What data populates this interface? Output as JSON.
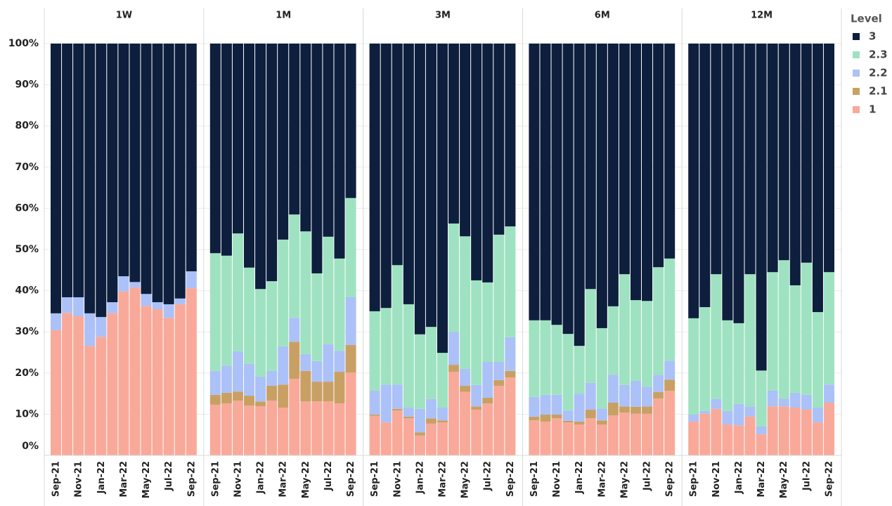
{
  "chart_data": {
    "type": "bar",
    "stacked": true,
    "legend_title": "Level",
    "legend": "right",
    "grid": true,
    "facets": [
      "1W",
      "1M",
      "3M",
      "6M",
      "12M"
    ],
    "categories": [
      "Sep-21",
      null,
      "Nov-21",
      null,
      "Jan-22",
      null,
      "Mar-22",
      null,
      "May-22",
      null,
      "Jul-22",
      null,
      "Sep-22"
    ],
    "ylim": [
      0,
      100
    ],
    "yticks": [
      {
        "value": 0,
        "label": "0%"
      },
      {
        "value": 10,
        "label": "10%"
      },
      {
        "value": 20,
        "label": "20%"
      },
      {
        "value": 30,
        "label": "30%"
      },
      {
        "value": 40,
        "label": "40%"
      },
      {
        "value": 50,
        "label": "50%"
      },
      {
        "value": 60,
        "label": "60%"
      },
      {
        "value": 70,
        "label": "70%"
      },
      {
        "value": 80,
        "label": "80%"
      },
      {
        "value": 90,
        "label": "90%"
      },
      {
        "value": 100,
        "label": "100%"
      }
    ],
    "series": [
      {
        "name": "3",
        "color": "#0d1f3d",
        "values": [
          [
            65.5,
            61.6,
            61.6,
            65.5,
            66.4,
            62.8,
            56.5,
            57.9,
            60.8,
            62.8,
            63.3,
            61.9,
            55.3
          ],
          [
            50.9,
            51.5,
            46.1,
            54.4,
            59.6,
            57.7,
            47.6,
            41.5,
            45.6,
            55.8,
            46.9,
            52.2,
            37.5
          ],
          [
            65.0,
            64.2,
            53.8,
            63.3,
            70.6,
            68.8,
            75.1,
            43.7,
            46.8,
            57.5,
            58.0,
            46.4,
            44.4
          ],
          [
            67.2,
            67.2,
            68.3,
            70.5,
            73.4,
            59.6,
            69.1,
            63.8,
            56.0,
            62.3,
            62.5,
            54.3,
            52.2
          ],
          [
            66.7,
            64.0,
            56.0,
            67.2,
            67.9,
            56.0,
            79.4,
            55.5,
            52.6,
            58.7,
            53.2,
            65.2,
            55.5
          ]
        ]
      },
      {
        "name": "2.3",
        "color": "#9fe2c1",
        "values": [
          [
            0,
            0,
            0,
            0,
            0,
            0,
            0,
            0,
            0,
            0,
            0,
            0,
            0
          ],
          [
            28.6,
            26.7,
            28.6,
            23.4,
            21.3,
            21.8,
            25.9,
            25.1,
            29.8,
            21.3,
            26.1,
            22.4,
            24.1
          ],
          [
            19.3,
            18.6,
            29.0,
            25.1,
            18.1,
            17.5,
            13.3,
            26.3,
            32.2,
            25.4,
            19.3,
            30.9,
            26.9
          ],
          [
            18.6,
            18.1,
            17.0,
            18.6,
            11.6,
            22.8,
            19.5,
            16.6,
            26.9,
            19.6,
            20.8,
            26.1,
            24.8
          ],
          [
            23.4,
            25.2,
            30.3,
            22.0,
            19.6,
            32.1,
            13.6,
            28.8,
            33.6,
            26.1,
            32.1,
            23.2,
            27.3
          ]
        ]
      },
      {
        "name": "2.2",
        "color": "#abc1f7",
        "values": [
          [
            4.1,
            3.8,
            4.6,
            7.9,
            4.8,
            2.7,
            3.7,
            1.3,
            2.9,
            1.7,
            3.3,
            1.4,
            4.1
          ],
          [
            5.8,
            6.6,
            9.8,
            7.7,
            6.0,
            3.6,
            9.3,
            5.8,
            4.1,
            5.0,
            9.1,
            5.1,
            11.6
          ],
          [
            5.8,
            9.2,
            5.9,
            2.2,
            5.7,
            4.7,
            3.1,
            8.0,
            4.1,
            5.2,
            8.7,
            4.4,
            8.2
          ],
          [
            4.8,
            4.8,
            4.8,
            2.5,
            6.8,
            6.5,
            2.9,
            6.8,
            5.2,
            6.3,
            4.8,
            4.2,
            4.6
          ],
          [
            1.7,
            0.7,
            2.4,
            3.3,
            5.2,
            2.5,
            1.9,
            3.8,
            1.9,
            3.6,
            3.6,
            3.6,
            4.4
          ]
        ]
      },
      {
        "name": "2.1",
        "color": "#c9a064",
        "values": [
          [
            0,
            0,
            0,
            0,
            0,
            0,
            0,
            0,
            0,
            0,
            0,
            0,
            0
          ],
          [
            2.4,
            2.6,
            2.2,
            2.4,
            1.2,
            3.6,
            5.6,
            9.0,
            7.4,
            4.8,
            4.8,
            7.7,
            6.7
          ],
          [
            0.3,
            0,
            0.4,
            0.4,
            0.8,
            1.3,
            0.5,
            1.7,
            1.5,
            0.8,
            1.4,
            1.4,
            1.6
          ],
          [
            0.9,
            1.7,
            0.9,
            0.4,
            0.7,
            2.1,
            1.0,
            3.1,
            1.5,
            1.7,
            1.8,
            1.6,
            2.7
          ],
          [
            0,
            0,
            0,
            0,
            0,
            0,
            0,
            0,
            0,
            0,
            0,
            0,
            0
          ]
        ]
      },
      {
        "name": "1",
        "color": "#f9a999",
        "values": [
          [
            30.4,
            34.6,
            33.8,
            26.6,
            28.8,
            34.5,
            39.8,
            40.8,
            36.3,
            35.5,
            33.4,
            36.7,
            40.6
          ],
          [
            12.3,
            12.6,
            13.3,
            12.1,
            11.9,
            13.3,
            11.6,
            18.6,
            13.1,
            13.1,
            13.1,
            12.6,
            20.1
          ],
          [
            9.6,
            8.0,
            10.9,
            9.0,
            4.8,
            7.7,
            8.0,
            20.3,
            15.4,
            11.1,
            12.6,
            16.9,
            18.9
          ],
          [
            8.5,
            8.2,
            9.0,
            8.0,
            7.5,
            9.0,
            7.5,
            9.7,
            10.4,
            10.1,
            10.1,
            13.8,
            15.7
          ],
          [
            8.2,
            10.1,
            11.3,
            7.5,
            7.3,
            9.4,
            5.1,
            11.9,
            11.9,
            11.6,
            11.1,
            8.0,
            12.8
          ]
        ]
      }
    ]
  }
}
